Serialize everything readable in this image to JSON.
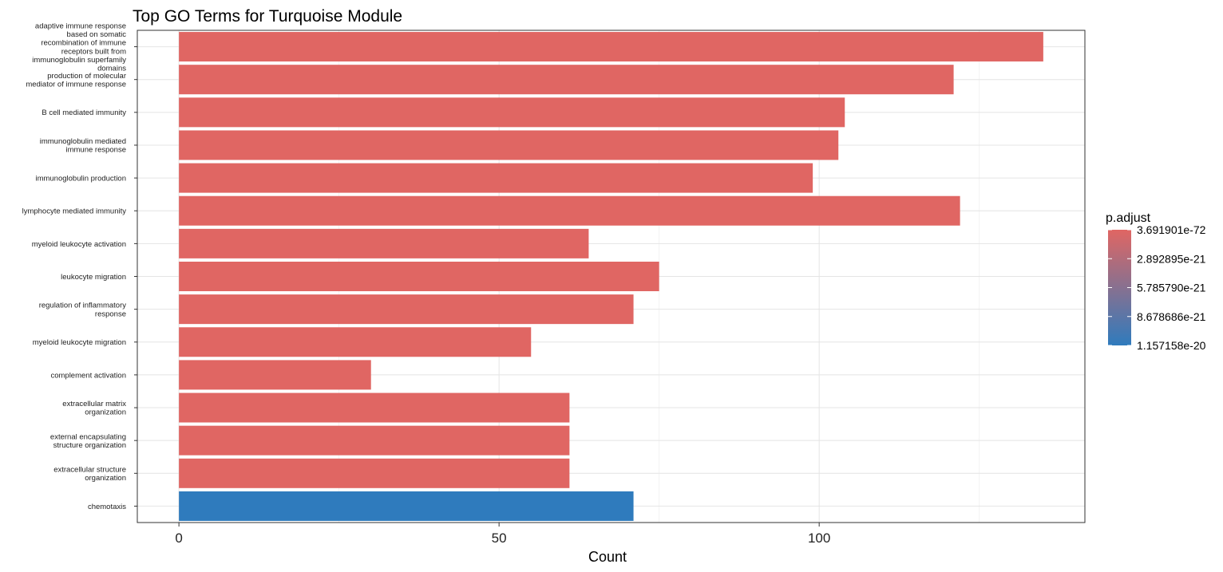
{
  "chart_data": {
    "type": "bar",
    "orientation": "horizontal",
    "title": "Top GO Terms for Turquoise Module",
    "xlabel": "Count",
    "ylabel": "",
    "xlim": [
      -6.5,
      141.5
    ],
    "xticks": [
      0,
      50,
      100
    ],
    "grid": true,
    "categories": [
      [
        "adaptive immune response",
        "based on somatic",
        "recombination of immune",
        "receptors built from",
        "immunoglobulin superfamily",
        "domains"
      ],
      [
        "production of molecular",
        "mediator of immune response"
      ],
      [
        "B cell mediated immunity"
      ],
      [
        "immunoglobulin mediated",
        "immune response"
      ],
      [
        "immunoglobulin production"
      ],
      [
        "lymphocyte mediated immunity"
      ],
      [
        "myeloid leukocyte activation"
      ],
      [
        "leukocyte migration"
      ],
      [
        "regulation of inflammatory",
        "response"
      ],
      [
        "myeloid leukocyte migration"
      ],
      [
        "complement activation"
      ],
      [
        "extracellular matrix",
        "organization"
      ],
      [
        "external encapsulating",
        "structure organization"
      ],
      [
        "extracellular structure",
        "organization"
      ],
      [
        "chemotaxis"
      ]
    ],
    "values": [
      135,
      121,
      104,
      103,
      99,
      122,
      64,
      75,
      71,
      55,
      30,
      61,
      61,
      61,
      71
    ],
    "color_fraction": [
      0,
      0,
      0,
      0,
      0,
      0,
      0,
      0,
      0,
      0,
      0,
      0,
      0,
      0,
      1
    ],
    "legend": {
      "title": "p.adjust",
      "position": "right",
      "labels": [
        "3.691901e-72",
        "2.892895e-21",
        "5.785790e-21",
        "8.678686e-21",
        "1.157158e-20"
      ],
      "low_color": "#e06663",
      "high_color": "#2f7bbd"
    }
  }
}
